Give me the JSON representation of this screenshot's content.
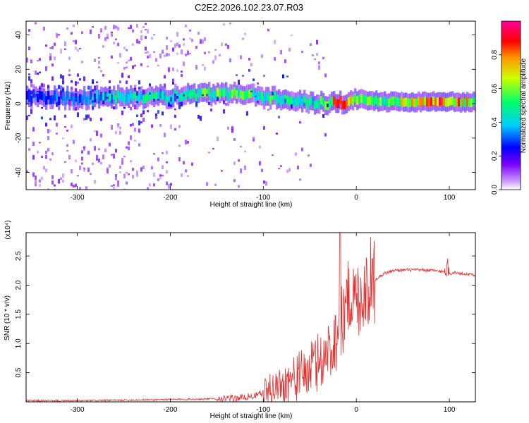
{
  "title": "C2E2.2026.102.23.07.R03",
  "chart_data": [
    {
      "type": "heatmap",
      "xlabel": "Height of straight line (km)",
      "ylabel": "Frequency (Hz)",
      "xlim": [
        -355,
        128
      ],
      "ylim": [
        -50,
        48
      ],
      "xticks": [
        -300,
        -200,
        -100,
        0,
        100
      ],
      "xtick_labels": [
        "-300",
        "-200",
        "-100",
        "0",
        "100"
      ],
      "yticks": [
        -40,
        -20,
        0,
        20,
        40
      ],
      "ytick_labels": [
        "-40",
        "-20",
        "0",
        "20",
        "40"
      ],
      "colorbar": {
        "label": "Normalized spectral amplitude",
        "range": [
          0,
          1
        ],
        "ticks": [
          0.0,
          0.2,
          0.4,
          0.6,
          0.8
        ],
        "tick_labels": [
          "0.0",
          "0.2",
          "0.4",
          "0.6",
          "0.8"
        ],
        "colors": [
          "#ffffff",
          "#cc99ff",
          "#7a00ff",
          "#0000ff",
          "#00ccff",
          "#00ff66",
          "#ccff00",
          "#ff6600",
          "#ff0000",
          "#ff0099"
        ]
      },
      "ridge": {
        "x": [
          -350,
          -300,
          -250,
          -200,
          -170,
          -150,
          -120,
          -100,
          -80,
          -60,
          -40,
          -30,
          -20,
          -10,
          0,
          10,
          30,
          60,
          90,
          128
        ],
        "frequency": [
          4,
          3,
          4,
          4,
          5,
          6,
          6,
          4,
          3,
          2,
          0,
          0,
          0,
          1,
          3,
          2,
          1,
          1,
          1,
          1
        ],
        "amplitude": [
          0.3,
          0.3,
          0.45,
          0.4,
          0.5,
          0.55,
          0.5,
          0.5,
          0.45,
          0.4,
          0.45,
          0.6,
          0.85,
          0.7,
          0.6,
          0.55,
          0.55,
          0.65,
          0.85,
          0.55
        ]
      }
    },
    {
      "type": "line",
      "xlabel": "Height of straight line (km)",
      "ylabel": "SNR (10 * v/v)",
      "scale_note": "(x10⁴)",
      "xlim": [
        -355,
        128
      ],
      "ylim": [
        0,
        2.9
      ],
      "xticks": [
        -300,
        -200,
        -100,
        0,
        100
      ],
      "xtick_labels": [
        "-300",
        "-200",
        "-100",
        "0",
        "100"
      ],
      "yticks": [
        0.5,
        1.0,
        1.5,
        2.0,
        2.5
      ],
      "ytick_labels": [
        "0.5",
        "1.0",
        "1.5",
        "2.0",
        "2.5"
      ],
      "series": [
        {
          "name": "SNR",
          "color": "#e03030",
          "x": [
            -355,
            -300,
            -250,
            -200,
            -160,
            -130,
            -110,
            -100,
            -90,
            -80,
            -70,
            -60,
            -50,
            -40,
            -30,
            -25,
            -20,
            -15,
            -12,
            -10,
            -5,
            0,
            5,
            10,
            15,
            20,
            25,
            30,
            40,
            50,
            60,
            70,
            80,
            90,
            95,
            98,
            100,
            105,
            110,
            120,
            128
          ],
          "y": [
            0.02,
            0.02,
            0.03,
            0.04,
            0.05,
            0.06,
            0.1,
            0.15,
            0.22,
            0.3,
            0.38,
            0.45,
            0.55,
            0.7,
            0.85,
            1.0,
            1.2,
            1.4,
            1.6,
            1.75,
            1.85,
            1.7,
            1.85,
            1.95,
            2.05,
            2.1,
            2.15,
            2.2,
            2.25,
            2.26,
            2.26,
            2.26,
            2.25,
            2.24,
            2.22,
            2.3,
            2.2,
            2.22,
            2.2,
            2.19,
            2.18
          ]
        }
      ]
    }
  ]
}
